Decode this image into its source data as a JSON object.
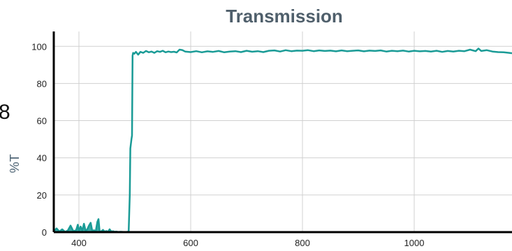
{
  "chart_data": {
    "type": "line",
    "title": "Transmission",
    "xlabel": "",
    "ylabel": "%T",
    "side_text": "8",
    "xlim": [
      355,
      1175
    ],
    "ylim": [
      0,
      108
    ],
    "x_ticks": [
      400,
      600,
      800,
      1000
    ],
    "y_ticks": [
      0,
      20,
      40,
      60,
      80,
      100
    ],
    "grid": true,
    "legend": "none",
    "colors": {
      "series": "#1a9b96",
      "axis": "#000000",
      "grid": "#d0d0d0",
      "title": "#4f5f6b",
      "ylabel": "#4f6575"
    },
    "series": [
      {
        "values": [
          [
            355,
            0.5
          ],
          [
            360,
            2.0
          ],
          [
            365,
            0.3
          ],
          [
            370,
            1.5
          ],
          [
            375,
            0.2
          ],
          [
            380,
            0.8
          ],
          [
            385,
            3.5
          ],
          [
            390,
            0.5
          ],
          [
            395,
            1.0
          ],
          [
            398,
            4.0
          ],
          [
            400,
            0.5
          ],
          [
            403,
            3.0
          ],
          [
            406,
            0.8
          ],
          [
            409,
            4.5
          ],
          [
            412,
            0.6
          ],
          [
            415,
            1.5
          ],
          [
            418,
            3.5
          ],
          [
            421,
            5.0
          ],
          [
            424,
            0.5
          ],
          [
            427,
            1.0
          ],
          [
            430,
            0.3
          ],
          [
            433,
            5.5
          ],
          [
            435,
            7.0
          ],
          [
            437,
            0.5
          ],
          [
            440,
            0.4
          ],
          [
            443,
            1.2
          ],
          [
            446,
            0.3
          ],
          [
            449,
            0.6
          ],
          [
            452,
            0.2
          ],
          [
            455,
            1.5
          ],
          [
            458,
            0.3
          ],
          [
            461,
            0.5
          ],
          [
            464,
            0.2
          ],
          [
            467,
            0.3
          ],
          [
            470,
            0.1
          ],
          [
            475,
            0.2
          ],
          [
            480,
            0.1
          ],
          [
            485,
            0.1
          ],
          [
            489,
            0.3
          ],
          [
            491,
            20
          ],
          [
            492,
            45
          ],
          [
            494,
            50
          ],
          [
            495,
            52
          ],
          [
            496,
            95
          ],
          [
            497,
            96.5
          ],
          [
            499,
            96
          ],
          [
            502,
            97
          ],
          [
            506,
            95.5
          ],
          [
            510,
            97
          ],
          [
            515,
            96.5
          ],
          [
            520,
            97.5
          ],
          [
            525,
            96.8
          ],
          [
            530,
            97.2
          ],
          [
            535,
            96.5
          ],
          [
            540,
            97.4
          ],
          [
            545,
            97
          ],
          [
            550,
            97.6
          ],
          [
            555,
            96.8
          ],
          [
            560,
            97.2
          ],
          [
            565,
            96.9
          ],
          [
            570,
            97.1
          ],
          [
            575,
            96.7
          ],
          [
            580,
            98.2
          ],
          [
            585,
            98
          ],
          [
            590,
            97.2
          ],
          [
            600,
            96.9
          ],
          [
            610,
            97.4
          ],
          [
            620,
            96.8
          ],
          [
            630,
            97.3
          ],
          [
            640,
            97
          ],
          [
            650,
            97.5
          ],
          [
            660,
            96.8
          ],
          [
            670,
            97.2
          ],
          [
            680,
            97.4
          ],
          [
            690,
            96.9
          ],
          [
            700,
            97.6
          ],
          [
            710,
            97.1
          ],
          [
            720,
            97.4
          ],
          [
            730,
            96.9
          ],
          [
            740,
            97.6
          ],
          [
            750,
            97.8
          ],
          [
            760,
            97.2
          ],
          [
            770,
            97.9
          ],
          [
            780,
            97.4
          ],
          [
            790,
            97.7
          ],
          [
            800,
            97.6
          ],
          [
            810,
            97.9
          ],
          [
            820,
            97.4
          ],
          [
            830,
            97.8
          ],
          [
            840,
            97.5
          ],
          [
            850,
            97.7
          ],
          [
            860,
            97.3
          ],
          [
            870,
            97.8
          ],
          [
            880,
            97.4
          ],
          [
            890,
            97.6
          ],
          [
            900,
            97.8
          ],
          [
            910,
            97.3
          ],
          [
            920,
            97.7
          ],
          [
            930,
            97.5
          ],
          [
            940,
            97.8
          ],
          [
            950,
            97.2
          ],
          [
            960,
            97.6
          ],
          [
            970,
            97.4
          ],
          [
            980,
            97.7
          ],
          [
            990,
            97.2
          ],
          [
            1000,
            97.6
          ],
          [
            1010,
            97.3
          ],
          [
            1020,
            97.5
          ],
          [
            1030,
            97.2
          ],
          [
            1040,
            97.6
          ],
          [
            1050,
            97
          ],
          [
            1060,
            97.5
          ],
          [
            1070,
            97.2
          ],
          [
            1080,
            97.6
          ],
          [
            1090,
            97.4
          ],
          [
            1100,
            98.2
          ],
          [
            1110,
            97.4
          ],
          [
            1115,
            98.8
          ],
          [
            1120,
            97.5
          ],
          [
            1130,
            97.9
          ],
          [
            1140,
            97.2
          ],
          [
            1150,
            96.9
          ],
          [
            1160,
            96.8
          ],
          [
            1170,
            96.5
          ],
          [
            1175,
            96.3
          ]
        ]
      }
    ]
  }
}
